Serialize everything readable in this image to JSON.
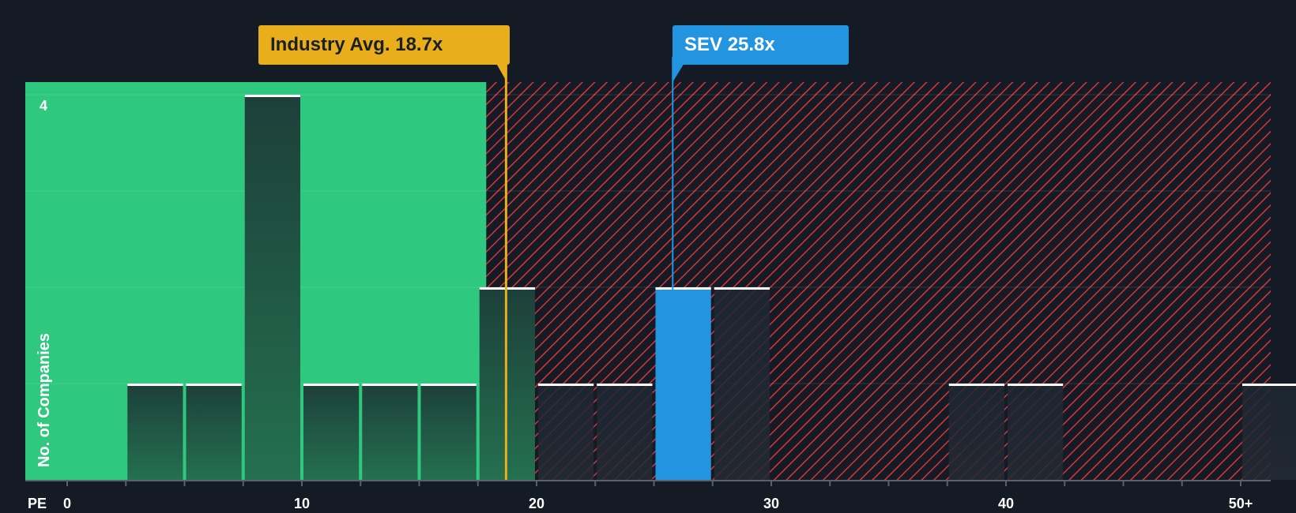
{
  "colors": {
    "background": "#151b24",
    "fair_zone": "#2ec97e",
    "expensive_hatch": "#d8343d",
    "industry": "#e9ae1b",
    "company": "#2394e0",
    "bar_dark": "#1d3a35",
    "axis_text": "#ffffff"
  },
  "callouts": {
    "industry_label": "Industry Avg. 18.7x",
    "company_label": "SEV 25.8x"
  },
  "chart_data": {
    "type": "bar",
    "title": "",
    "xlabel": "PE",
    "ylabel": "No. of Companies",
    "xlim": [
      0,
      51.5
    ],
    "ylim": [
      0,
      4
    ],
    "x_ticks": [
      {
        "value": 0,
        "label": "0"
      },
      {
        "value": 10,
        "label": "10"
      },
      {
        "value": 20,
        "label": "20"
      },
      {
        "value": 30,
        "label": "30"
      },
      {
        "value": 40,
        "label": "40"
      },
      {
        "value": 50,
        "label": "50+"
      }
    ],
    "y_ticks": [
      {
        "value": 4,
        "label": "4"
      }
    ],
    "bin_width": 2.5,
    "bins": [
      {
        "start": 2.5,
        "count": 1
      },
      {
        "start": 5,
        "count": 1
      },
      {
        "start": 7.5,
        "count": 4
      },
      {
        "start": 10,
        "count": 1
      },
      {
        "start": 12.5,
        "count": 1
      },
      {
        "start": 15,
        "count": 1
      },
      {
        "start": 17.5,
        "count": 2
      },
      {
        "start": 20,
        "count": 1
      },
      {
        "start": 22.5,
        "count": 1
      },
      {
        "start": 25,
        "count": 2,
        "highlight": true
      },
      {
        "start": 27.5,
        "count": 2
      },
      {
        "start": 37.5,
        "count": 1
      },
      {
        "start": 40,
        "count": 1
      },
      {
        "start": 50,
        "count": 1
      }
    ],
    "industry_avg": 18.7,
    "company_value": 25.8,
    "company_name": "SEV",
    "fair_value_limit": 18.7
  }
}
